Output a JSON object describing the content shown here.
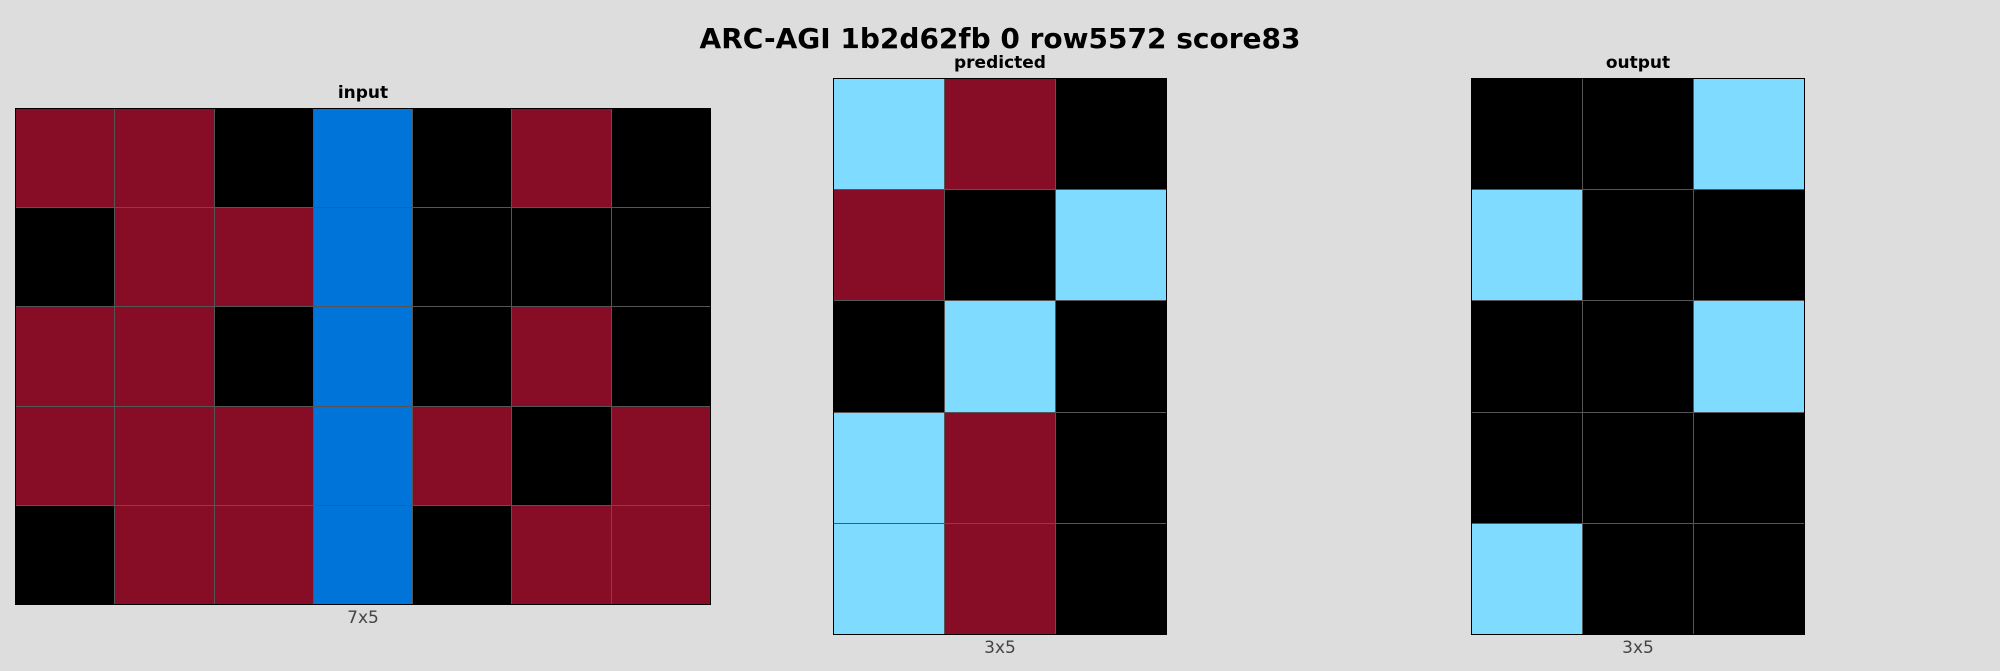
{
  "title": "ARC-AGI 1b2d62fb 0 row5572 score83",
  "palette": {
    "0": "#000000",
    "1": "#0074d9",
    "8": "#7fdbff",
    "9": "#870c25"
  },
  "panels": [
    {
      "label": "input",
      "dims": "7x5",
      "cols": 7,
      "rows": [
        [
          9,
          9,
          0,
          1,
          0,
          9,
          0
        ],
        [
          0,
          9,
          9,
          1,
          0,
          0,
          0
        ],
        [
          9,
          9,
          0,
          1,
          0,
          9,
          0
        ],
        [
          9,
          9,
          9,
          1,
          9,
          0,
          9
        ],
        [
          0,
          9,
          9,
          1,
          0,
          9,
          9
        ]
      ]
    },
    {
      "label": "predicted",
      "dims": "3x5",
      "cols": 3,
      "rows": [
        [
          8,
          9,
          0
        ],
        [
          9,
          0,
          8
        ],
        [
          0,
          8,
          0
        ],
        [
          8,
          9,
          0
        ],
        [
          8,
          9,
          0
        ]
      ]
    },
    {
      "label": "output",
      "dims": "3x5",
      "cols": 3,
      "rows": [
        [
          0,
          0,
          8
        ],
        [
          8,
          0,
          0
        ],
        [
          0,
          0,
          8
        ],
        [
          0,
          0,
          0
        ],
        [
          8,
          0,
          0
        ]
      ]
    }
  ]
}
